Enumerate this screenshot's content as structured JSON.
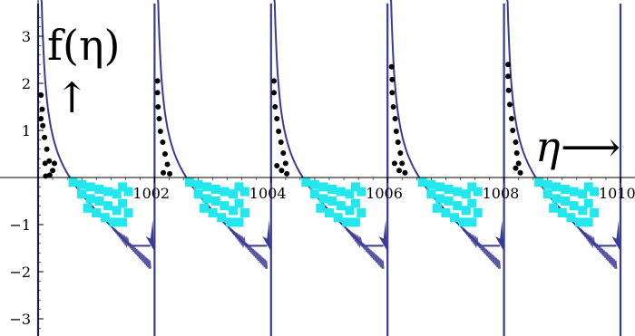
{
  "chart_data": {
    "type": "line",
    "xlim": [
      1000,
      1010
    ],
    "ylim": [
      -3.5,
      3.5
    ],
    "x_ticks": [
      {
        "value": 1002,
        "label": "1002"
      },
      {
        "value": 1004,
        "label": "1004"
      },
      {
        "value": 1006,
        "label": "1006"
      },
      {
        "value": 1008,
        "label": "1008"
      },
      {
        "value": 1010,
        "label": "1010"
      }
    ],
    "y_ticks": [
      {
        "value": 3,
        "label": "3"
      },
      {
        "value": 2,
        "label": "2"
      },
      {
        "value": 1,
        "label": "1"
      },
      {
        "value": -1,
        "label": "−1"
      },
      {
        "value": -2,
        "label": "−2"
      },
      {
        "value": -3,
        "label": "−3"
      }
    ],
    "annotations": {
      "y_axis_label": "f(η)",
      "y_axis_arrow": "↑",
      "x_axis_label": "η",
      "x_axis_arrow": "⟶"
    },
    "series": [
      {
        "kind": "curve",
        "color": "#3a3a96",
        "poles": [
          1000,
          1002,
          1004,
          1006,
          1008,
          1010
        ],
        "period": 2,
        "description_values": "decreasing branch between consecutive poles: ~3.5 near left pole, crosses 0 near pole+0.45, ~-1.3 near right pole with noisy band"
      },
      {
        "kind": "dots",
        "color": "#000000",
        "periods": [
          [
            [
              1000.05,
              1.75
            ],
            [
              1000.07,
              1.45
            ],
            [
              1000.08,
              1.1
            ],
            [
              1000.11,
              0.85
            ],
            [
              1000.15,
              0.6
            ],
            [
              1000.19,
              0.35
            ],
            [
              1000.25,
              0.15
            ],
            [
              1000.2,
              0.05
            ],
            [
              1000.13,
              0.03
            ],
            [
              1000.28,
              0.3
            ],
            [
              1000.12,
              0.3
            ],
            [
              1000.05,
              1.25
            ]
          ],
          [
            [
              1002.05,
              2.05
            ],
            [
              1002.05,
              1.8
            ],
            [
              1002.06,
              1.5
            ],
            [
              1002.08,
              1.25
            ],
            [
              1002.1,
              0.98
            ],
            [
              1002.14,
              0.75
            ],
            [
              1002.18,
              0.5
            ],
            [
              1002.22,
              0.28
            ],
            [
              1002.26,
              0.08
            ],
            [
              1002.15,
              0.1
            ]
          ],
          [
            [
              1004.05,
              2.05
            ],
            [
              1004.05,
              1.8
            ],
            [
              1004.07,
              1.5
            ],
            [
              1004.1,
              1.25
            ],
            [
              1004.13,
              0.98
            ],
            [
              1004.17,
              0.75
            ],
            [
              1004.21,
              0.52
            ],
            [
              1004.25,
              0.3
            ],
            [
              1004.18,
              0.15
            ],
            [
              1004.1,
              0.25
            ],
            [
              1004.27,
              0.08
            ]
          ],
          [
            [
              1006.07,
              2.35
            ],
            [
              1006.08,
              2.08
            ],
            [
              1006.08,
              1.8
            ],
            [
              1006.1,
              1.5
            ],
            [
              1006.13,
              1.25
            ],
            [
              1006.15,
              0.98
            ],
            [
              1006.18,
              0.75
            ],
            [
              1006.22,
              0.52
            ],
            [
              1006.25,
              0.3
            ],
            [
              1006.3,
              0.1
            ],
            [
              1006.2,
              0.15
            ],
            [
              1006.12,
              0.3
            ]
          ],
          [
            [
              1008.07,
              2.4
            ],
            [
              1008.07,
              2.15
            ],
            [
              1008.08,
              1.85
            ],
            [
              1008.1,
              1.55
            ],
            [
              1008.13,
              1.25
            ],
            [
              1008.15,
              1.0
            ],
            [
              1008.2,
              0.75
            ],
            [
              1008.22,
              0.52
            ],
            [
              1008.25,
              0.3
            ],
            [
              1008.28,
              0.1
            ],
            [
              1008.2,
              0.2
            ]
          ]
        ]
      },
      {
        "kind": "squares",
        "color": "#22e8ee",
        "periods": [
          [
            [
              1000.6,
              -0.1
            ],
            [
              1000.75,
              -0.15
            ],
            [
              1000.9,
              -0.2
            ],
            [
              1001.05,
              -0.25
            ],
            [
              1001.2,
              -0.3
            ],
            [
              1001.35,
              -0.35
            ],
            [
              1000.75,
              -0.35
            ],
            [
              1000.9,
              -0.45
            ],
            [
              1001.05,
              -0.5
            ],
            [
              1001.2,
              -0.6
            ],
            [
              1001.35,
              -0.7
            ],
            [
              1001.45,
              -0.55
            ],
            [
              1000.85,
              -0.65
            ],
            [
              1001.0,
              -0.75
            ],
            [
              1001.15,
              -0.85
            ],
            [
              1001.3,
              -0.95
            ],
            [
              1001.45,
              -0.95
            ],
            [
              1001.45,
              -0.2
            ],
            [
              1001.55,
              -0.3
            ],
            [
              1001.55,
              -0.75
            ]
          ],
          [
            [
              1002.6,
              -0.1
            ],
            [
              1002.75,
              -0.15
            ],
            [
              1002.9,
              -0.2
            ],
            [
              1003.05,
              -0.25
            ],
            [
              1003.2,
              -0.3
            ],
            [
              1003.35,
              -0.35
            ],
            [
              1002.75,
              -0.35
            ],
            [
              1002.9,
              -0.45
            ],
            [
              1003.05,
              -0.5
            ],
            [
              1003.2,
              -0.6
            ],
            [
              1003.35,
              -0.7
            ],
            [
              1003.45,
              -0.55
            ],
            [
              1002.85,
              -0.65
            ],
            [
              1003.0,
              -0.75
            ],
            [
              1003.15,
              -0.85
            ],
            [
              1003.3,
              -0.95
            ],
            [
              1003.45,
              -0.95
            ],
            [
              1003.45,
              -0.2
            ],
            [
              1003.55,
              -0.3
            ],
            [
              1003.55,
              -0.75
            ]
          ],
          [
            [
              1004.6,
              -0.1
            ],
            [
              1004.75,
              -0.15
            ],
            [
              1004.9,
              -0.2
            ],
            [
              1005.05,
              -0.25
            ],
            [
              1005.2,
              -0.3
            ],
            [
              1005.35,
              -0.35
            ],
            [
              1004.75,
              -0.35
            ],
            [
              1004.9,
              -0.45
            ],
            [
              1005.05,
              -0.5
            ],
            [
              1005.2,
              -0.6
            ],
            [
              1005.35,
              -0.7
            ],
            [
              1005.45,
              -0.55
            ],
            [
              1004.85,
              -0.65
            ],
            [
              1005.0,
              -0.75
            ],
            [
              1005.15,
              -0.85
            ],
            [
              1005.3,
              -0.95
            ],
            [
              1005.45,
              -0.95
            ],
            [
              1005.45,
              -0.2
            ],
            [
              1005.55,
              -0.3
            ],
            [
              1005.55,
              -0.75
            ]
          ],
          [
            [
              1006.6,
              -0.1
            ],
            [
              1006.75,
              -0.15
            ],
            [
              1006.9,
              -0.2
            ],
            [
              1007.05,
              -0.25
            ],
            [
              1007.2,
              -0.3
            ],
            [
              1007.35,
              -0.35
            ],
            [
              1006.75,
              -0.35
            ],
            [
              1006.9,
              -0.45
            ],
            [
              1007.05,
              -0.5
            ],
            [
              1007.2,
              -0.6
            ],
            [
              1007.35,
              -0.7
            ],
            [
              1007.45,
              -0.55
            ],
            [
              1006.85,
              -0.65
            ],
            [
              1007.0,
              -0.75
            ],
            [
              1007.15,
              -0.85
            ],
            [
              1007.3,
              -0.95
            ],
            [
              1007.45,
              -0.95
            ],
            [
              1007.45,
              -0.2
            ],
            [
              1007.55,
              -0.3
            ],
            [
              1007.55,
              -0.75
            ]
          ],
          [
            [
              1008.6,
              -0.1
            ],
            [
              1008.75,
              -0.15
            ],
            [
              1008.9,
              -0.2
            ],
            [
              1009.05,
              -0.25
            ],
            [
              1009.2,
              -0.3
            ],
            [
              1009.35,
              -0.35
            ],
            [
              1008.75,
              -0.35
            ],
            [
              1008.9,
              -0.45
            ],
            [
              1009.05,
              -0.5
            ],
            [
              1009.2,
              -0.6
            ],
            [
              1009.35,
              -0.7
            ],
            [
              1009.45,
              -0.55
            ],
            [
              1008.85,
              -0.65
            ],
            [
              1009.0,
              -0.75
            ],
            [
              1009.15,
              -0.85
            ],
            [
              1009.3,
              -0.95
            ],
            [
              1009.45,
              -0.95
            ],
            [
              1009.45,
              -0.2
            ],
            [
              1009.55,
              -0.3
            ],
            [
              1009.55,
              -0.75
            ]
          ]
        ]
      }
    ],
    "grid": false,
    "legend": "none"
  }
}
